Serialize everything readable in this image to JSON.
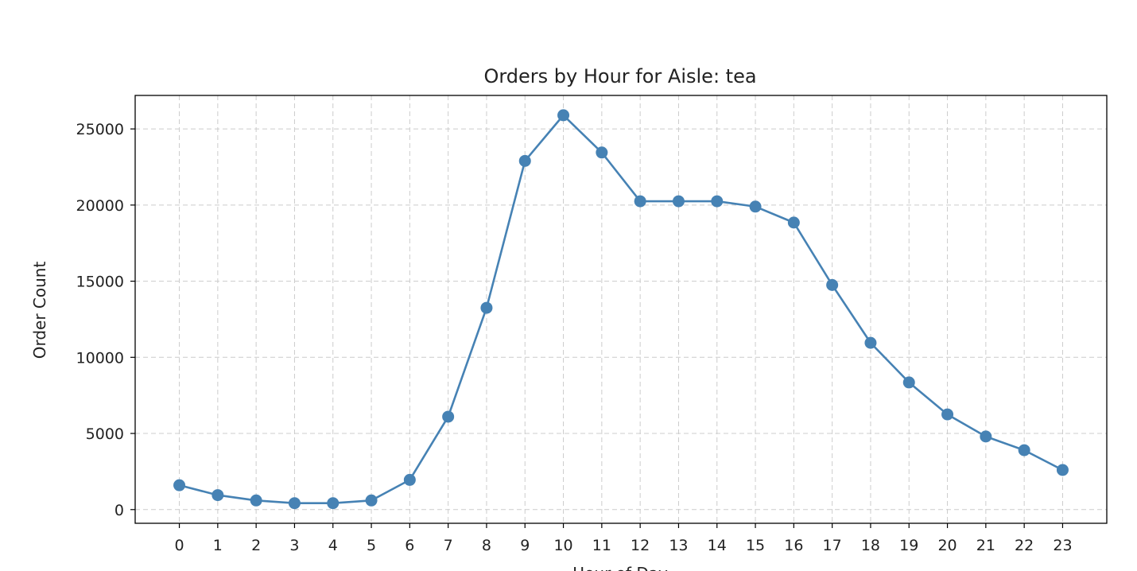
{
  "chart_data": {
    "type": "line",
    "title": "Orders by Hour for Aisle: tea",
    "xlabel": "Hour of Day",
    "ylabel": "Order Count",
    "x": [
      0,
      1,
      2,
      3,
      4,
      5,
      6,
      7,
      8,
      9,
      10,
      11,
      12,
      13,
      14,
      15,
      16,
      17,
      18,
      19,
      20,
      21,
      22,
      23
    ],
    "series": [
      {
        "values": [
          1600,
          950,
          600,
          420,
          420,
          600,
          1950,
          6100,
          13250,
          22900,
          25900,
          23450,
          20250,
          20250,
          20250,
          19900,
          18850,
          14750,
          10950,
          8350,
          6250,
          4800,
          3900,
          2600
        ]
      }
    ],
    "xlim": [
      -1.15,
      24.15
    ],
    "ylim": [
      -900,
      27200
    ],
    "xticks": [
      "0",
      "1",
      "2",
      "3",
      "4",
      "5",
      "6",
      "7",
      "8",
      "9",
      "10",
      "11",
      "12",
      "13",
      "14",
      "15",
      "16",
      "17",
      "18",
      "19",
      "20",
      "21",
      "22",
      "23"
    ],
    "yticks": [
      "0",
      "5000",
      "10000",
      "15000",
      "20000",
      "25000"
    ],
    "grid": true,
    "line_color": "#4682b4",
    "marker": "circle"
  }
}
